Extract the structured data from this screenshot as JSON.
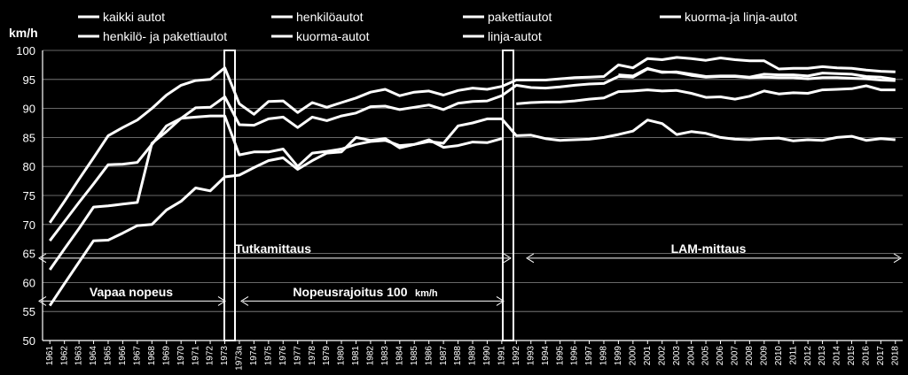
{
  "chart_data": {
    "type": "line",
    "ylabel": "km/h",
    "ylim": [
      50,
      100
    ],
    "yticks": [
      50,
      55,
      60,
      65,
      70,
      75,
      80,
      85,
      90,
      95,
      100
    ],
    "grid": true,
    "legend_position": "top",
    "categories": [
      "1961",
      "1962",
      "1963",
      "1964",
      "1965",
      "1966",
      "1967",
      "1968",
      "1969",
      "1970",
      "1971",
      "1972",
      "1973",
      "1973a",
      "1974",
      "1975",
      "1976",
      "1977",
      "1978",
      "1979",
      "1980",
      "1981",
      "1982",
      "1983",
      "1984",
      "1985",
      "1986",
      "1987",
      "1988",
      "1989",
      "1990",
      "1991",
      "1992",
      "1993",
      "1994",
      "1995",
      "1996",
      "1997",
      "1998",
      "1999",
      "2000",
      "2001",
      "2002",
      "2003",
      "2004",
      "2005",
      "2006",
      "2007",
      "2008",
      "2009",
      "2010",
      "2011",
      "2012",
      "2013",
      "2014",
      "2015",
      "2016",
      "2017",
      "2018"
    ],
    "series": [
      {
        "name": "kaikki autot",
        "values": [
          70.3,
          74.0,
          77.8,
          81.5,
          85.3,
          86.7,
          88.0,
          90.0,
          92.3,
          94.0,
          94.8,
          95.0,
          97.0,
          90.8,
          89.0,
          91.2,
          91.3,
          89.3,
          91.0,
          90.2,
          91.0,
          91.8,
          92.8,
          93.3,
          92.2,
          92.8,
          93.0,
          92.3,
          93.1,
          93.5,
          93.3,
          93.8,
          94.9,
          94.9,
          94.9,
          95.1,
          95.3,
          95.4,
          95.5,
          97.5,
          97.0,
          98.6,
          98.4,
          98.8,
          98.6,
          98.3,
          98.7,
          98.4,
          98.2,
          98.2,
          96.8,
          96.9,
          96.9,
          97.2,
          97.0,
          96.9,
          96.6,
          96.4,
          96.3
        ]
      },
      {
        "name": "henkilö- ja pakettiautot",
        "values": [
          67.2,
          70.5,
          73.8,
          77.0,
          80.3,
          80.4,
          80.7,
          83.8,
          87.0,
          88.3,
          90.1,
          90.2,
          92.0,
          87.2,
          87.1,
          88.2,
          88.5,
          86.7,
          88.5,
          87.9,
          88.7,
          89.2,
          90.3,
          90.4,
          89.8,
          90.2,
          90.6,
          89.8,
          90.9,
          91.2,
          91.3,
          92.2,
          94.0,
          93.6,
          93.5,
          93.7,
          94.0,
          94.2,
          94.3,
          95.5,
          95.4,
          96.8,
          96.3,
          96.2,
          95.7,
          95.4,
          95.5,
          95.5,
          95.3,
          95.4,
          95.3,
          95.3,
          95.1,
          95.3,
          95.3,
          95.2,
          95.1,
          94.9,
          94.8
        ]
      },
      {
        "name": "henkilöautot",
        "values": [
          null,
          null,
          null,
          null,
          null,
          null,
          null,
          null,
          null,
          null,
          null,
          null,
          null,
          null,
          null,
          null,
          null,
          null,
          null,
          null,
          null,
          null,
          null,
          null,
          null,
          null,
          null,
          null,
          null,
          null,
          null,
          null,
          null,
          null,
          null,
          null,
          null,
          null,
          null,
          95.8,
          95.6,
          96.9,
          96.2,
          96.3,
          95.9,
          95.5,
          95.6,
          95.6,
          95.4,
          95.9,
          95.8,
          95.8,
          95.6,
          96.1,
          96.0,
          95.9,
          95.5,
          95.4,
          95.0
        ]
      },
      {
        "name": "pakettiautot",
        "values": [
          null,
          null,
          null,
          null,
          null,
          null,
          null,
          null,
          null,
          null,
          null,
          null,
          null,
          null,
          null,
          null,
          null,
          null,
          null,
          null,
          null,
          null,
          null,
          null,
          null,
          null,
          null,
          null,
          null,
          null,
          null,
          null,
          90.8,
          91.0,
          91.1,
          91.1,
          91.3,
          91.6,
          91.8,
          92.9,
          93.0,
          93.2,
          93.0,
          93.1,
          92.6,
          91.9,
          92.0,
          91.6,
          92.1,
          93.0,
          92.5,
          92.7,
          92.6,
          93.2,
          93.3,
          93.4,
          93.9,
          93.2,
          93.2
        ]
      },
      {
        "name": "kuorma-ja linja-autot",
        "values": [
          62.2,
          65.8,
          69.3,
          73.0,
          73.2,
          73.5,
          73.8,
          84.0,
          86.0,
          88.3,
          88.5,
          88.7,
          88.7,
          82.0,
          82.5,
          82.5,
          83.0,
          80.0,
          82.3,
          82.6,
          83.0,
          83.8,
          84.3,
          84.5,
          83.6,
          83.8,
          84.3,
          84.0,
          87.0,
          87.5,
          88.2,
          88.2,
          85.3,
          85.4,
          84.8,
          84.5,
          84.6,
          84.7,
          85.0,
          85.5,
          86.1,
          88.0,
          87.4,
          85.5,
          86.0,
          85.7,
          85.0,
          84.7,
          84.6,
          84.8,
          84.9,
          84.4,
          84.6,
          84.5,
          85.0,
          85.2,
          84.5,
          84.8,
          84.6
        ]
      },
      {
        "name": "kuorma-autot",
        "values": [
          null,
          null,
          null,
          null,
          null,
          null,
          null,
          null,
          null,
          null,
          null,
          null,
          null,
          null,
          null,
          null,
          null,
          null,
          null,
          null,
          null,
          null,
          null,
          null,
          null,
          null,
          null,
          null,
          null,
          null,
          null,
          null,
          null,
          null,
          null,
          null,
          null,
          null,
          null,
          null,
          null,
          null,
          null,
          null,
          null,
          null,
          null,
          null,
          null,
          null,
          null,
          null,
          null,
          null,
          null,
          null,
          null,
          null,
          null
        ]
      },
      {
        "name": "linja-autot",
        "values": [
          56.0,
          59.8,
          63.5,
          67.2,
          67.3,
          68.5,
          69.8,
          70.0,
          72.5,
          74.0,
          76.3,
          75.8,
          78.2,
          78.5,
          79.8,
          81.0,
          81.5,
          79.5,
          81.0,
          82.3,
          82.5,
          85.0,
          84.5,
          84.8,
          83.2,
          83.8,
          84.6,
          83.3,
          83.6,
          84.2,
          84.1,
          84.8,
          null,
          null,
          null,
          null,
          null,
          null,
          null,
          null,
          null,
          null,
          null,
          null,
          null,
          null,
          null,
          null,
          null,
          null,
          null,
          null,
          null,
          null,
          null,
          null,
          null,
          null,
          null
        ]
      }
    ]
  },
  "annotations": {
    "vapaa": "Vapaa nopeus",
    "tutka": "Tutkamittaus",
    "rajoitus": "Nopeusrajoitus 100",
    "rajoitus_unit": "km/h",
    "lam": "LAM-mittaus"
  },
  "colors": {
    "background": "#000000",
    "lines": "#ffffff"
  }
}
